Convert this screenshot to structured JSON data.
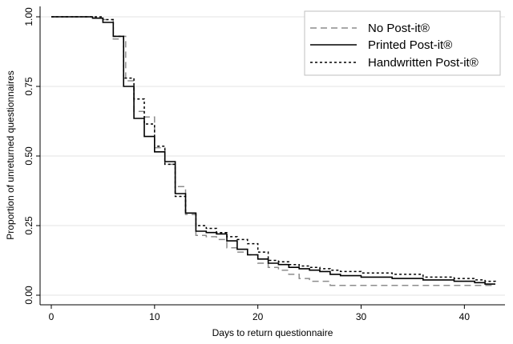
{
  "chart_data": {
    "type": "line",
    "subtype": "step",
    "title": "",
    "xlabel": "Days to return questionnaire",
    "ylabel": "Proportion of unreturned questionnaires",
    "xlim": [
      0,
      43
    ],
    "ylim": [
      0,
      1
    ],
    "xticks": [
      0,
      10,
      20,
      30,
      40
    ],
    "yticks": [
      0.0,
      0.25,
      0.5,
      0.75,
      1.0
    ],
    "xtick_labels": [
      "0",
      "10",
      "20",
      "30",
      "40"
    ],
    "ytick_labels": [
      "0.00",
      "0.25",
      "0.50",
      "0.75",
      "1.00"
    ],
    "grid": "horizontal",
    "legend_position": "top-right",
    "series": [
      {
        "name": "No Post-it®",
        "color": "#8c8c8c",
        "dash": "dashed",
        "points": [
          [
            0,
            1.0
          ],
          [
            4,
            0.995
          ],
          [
            5,
            0.99
          ],
          [
            6,
            0.92
          ],
          [
            7,
            0.93
          ],
          [
            7.2,
            0.77
          ],
          [
            8,
            0.66
          ],
          [
            9,
            0.64
          ],
          [
            10,
            0.53
          ],
          [
            11,
            0.47
          ],
          [
            12,
            0.39
          ],
          [
            13,
            0.29
          ],
          [
            14,
            0.215
          ],
          [
            15,
            0.21
          ],
          [
            16,
            0.2
          ],
          [
            17,
            0.17
          ],
          [
            18,
            0.155
          ],
          [
            19,
            0.145
          ],
          [
            20,
            0.115
          ],
          [
            21,
            0.1
          ],
          [
            22,
            0.09
          ],
          [
            23,
            0.075
          ],
          [
            24,
            0.06
          ],
          [
            25,
            0.05
          ],
          [
            27,
            0.035
          ],
          [
            40,
            0.035
          ],
          [
            43,
            0.035
          ]
        ]
      },
      {
        "name": "Printed Post-it®",
        "color": "#000000",
        "dash": "solid",
        "points": [
          [
            0,
            1.0
          ],
          [
            4,
            0.995
          ],
          [
            5,
            0.98
          ],
          [
            6,
            0.93
          ],
          [
            7,
            0.75
          ],
          [
            8,
            0.635
          ],
          [
            9,
            0.57
          ],
          [
            10,
            0.515
          ],
          [
            11,
            0.48
          ],
          [
            12,
            0.365
          ],
          [
            13,
            0.295
          ],
          [
            14,
            0.23
          ],
          [
            15,
            0.225
          ],
          [
            16,
            0.22
          ],
          [
            17,
            0.195
          ],
          [
            18,
            0.165
          ],
          [
            19,
            0.145
          ],
          [
            20,
            0.13
          ],
          [
            21,
            0.115
          ],
          [
            22,
            0.11
          ],
          [
            23,
            0.1
          ],
          [
            24,
            0.095
          ],
          [
            25,
            0.09
          ],
          [
            26,
            0.085
          ],
          [
            27,
            0.075
          ],
          [
            28,
            0.07
          ],
          [
            30,
            0.065
          ],
          [
            33,
            0.06
          ],
          [
            36,
            0.055
          ],
          [
            39,
            0.05
          ],
          [
            41,
            0.045
          ],
          [
            42,
            0.04
          ],
          [
            43,
            0.04
          ]
        ]
      },
      {
        "name": "Handwritten Post-it®",
        "color": "#000000",
        "dash": "dotted",
        "points": [
          [
            0,
            1.0
          ],
          [
            5,
            0.99
          ],
          [
            6,
            0.93
          ],
          [
            7,
            0.78
          ],
          [
            8,
            0.705
          ],
          [
            9,
            0.615
          ],
          [
            10,
            0.535
          ],
          [
            11,
            0.47
          ],
          [
            12,
            0.355
          ],
          [
            13,
            0.295
          ],
          [
            14,
            0.25
          ],
          [
            15,
            0.24
          ],
          [
            16,
            0.225
          ],
          [
            17,
            0.21
          ],
          [
            18,
            0.2
          ],
          [
            19,
            0.185
          ],
          [
            20,
            0.155
          ],
          [
            21,
            0.125
          ],
          [
            22,
            0.12
          ],
          [
            23,
            0.11
          ],
          [
            24,
            0.105
          ],
          [
            25,
            0.1
          ],
          [
            26,
            0.095
          ],
          [
            27,
            0.09
          ],
          [
            28,
            0.085
          ],
          [
            30,
            0.08
          ],
          [
            33,
            0.075
          ],
          [
            36,
            0.065
          ],
          [
            39,
            0.06
          ],
          [
            41,
            0.055
          ],
          [
            42,
            0.05
          ],
          [
            43,
            0.045
          ]
        ]
      }
    ]
  }
}
